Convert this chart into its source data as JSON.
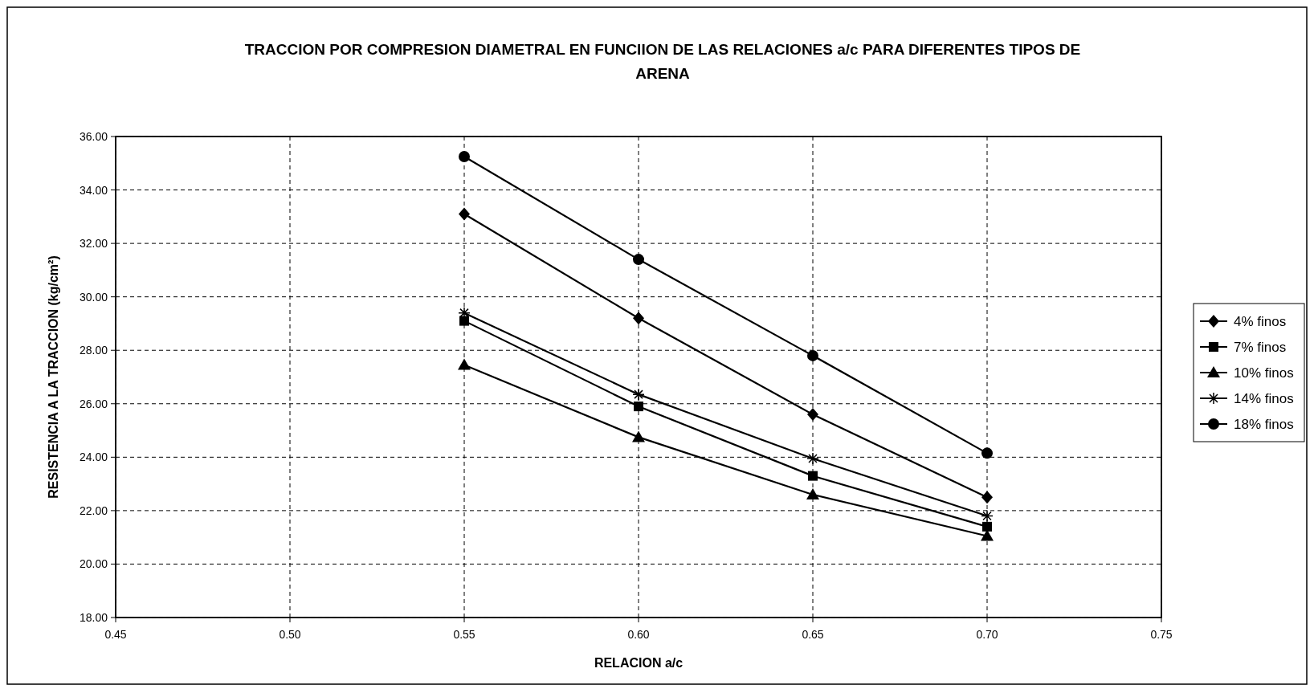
{
  "chart_data": {
    "type": "line",
    "title": "TRACCION POR COMPRESION DIAMETRAL EN FUNCIION DE LAS RELACIONES a/c PARA DIFERENTES TIPOS DE ARENA",
    "xlabel": "RELACION a/c",
    "ylabel": "RESISTENCIA A LA TRACCION  (kg/cm²)",
    "x": [
      0.55,
      0.6,
      0.65,
      0.7
    ],
    "series": [
      {
        "name": "4% finos",
        "color": "#000000",
        "marker": "diamond",
        "values": [
          33.1,
          29.2,
          25.6,
          22.5
        ]
      },
      {
        "name": "7% finos",
        "color": "#000000",
        "marker": "square",
        "values": [
          29.1,
          25.9,
          23.3,
          21.4
        ]
      },
      {
        "name": "10% finos",
        "color": "#000000",
        "marker": "triangle",
        "values": [
          27.45,
          24.75,
          22.6,
          21.05
        ]
      },
      {
        "name": "14% finos",
        "color": "#000000",
        "marker": "cross",
        "values": [
          29.4,
          26.35,
          23.95,
          21.8
        ]
      },
      {
        "name": "18% finos",
        "color": "#000000",
        "marker": "circle",
        "values": [
          35.25,
          31.4,
          27.8,
          24.15
        ]
      }
    ],
    "xlim": [
      0.45,
      0.75
    ],
    "xticks": [
      {
        "value": 0.45,
        "label": "0.45"
      },
      {
        "value": 0.5,
        "label": "0.50"
      },
      {
        "value": 0.55,
        "label": "0.55"
      },
      {
        "value": 0.6,
        "label": "0.60"
      },
      {
        "value": 0.65,
        "label": "0.65"
      },
      {
        "value": 0.7,
        "label": "0.70"
      },
      {
        "value": 0.75,
        "label": "0.75"
      }
    ],
    "ylim": [
      18,
      36
    ],
    "yticks": [
      {
        "value": 18,
        "label": "18.00"
      },
      {
        "value": 20,
        "label": "20.00"
      },
      {
        "value": 22,
        "label": "22.00"
      },
      {
        "value": 24,
        "label": "24.00"
      },
      {
        "value": 26,
        "label": "26.00"
      },
      {
        "value": 28,
        "label": "28.00"
      },
      {
        "value": 30,
        "label": "30.00"
      },
      {
        "value": 32,
        "label": "32.00"
      },
      {
        "value": 34,
        "label": "34.00"
      },
      {
        "value": 36,
        "label": "36.00"
      }
    ],
    "grid": true,
    "legend": "right",
    "line_style": "solid"
  }
}
